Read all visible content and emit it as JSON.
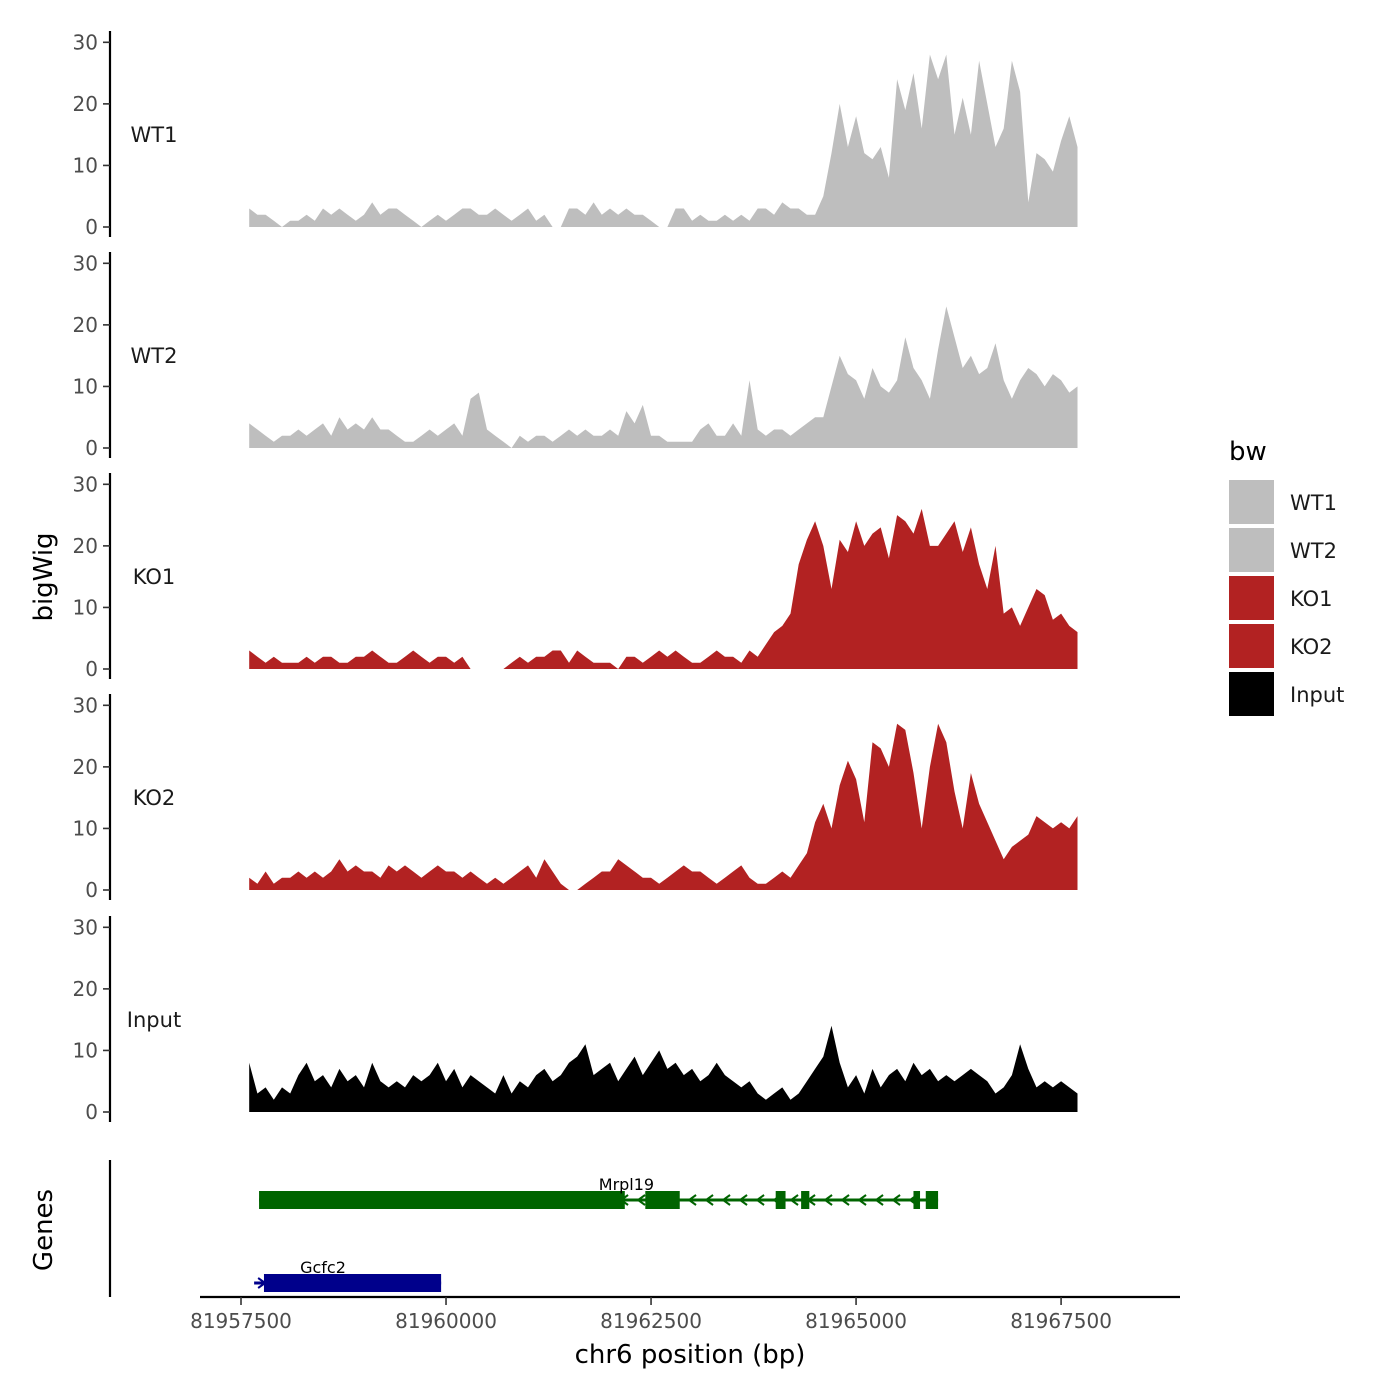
{
  "chart_data": {
    "type": "area",
    "title": "",
    "xlabel": "chr6 position (bp)",
    "ylabel": "bigWig",
    "genes_label": "Genes",
    "xlim": [
      81957000,
      81968950
    ],
    "ylim": [
      0,
      32
    ],
    "x_ticks": [
      81957500,
      81960000,
      81962500,
      81965000,
      81967500
    ],
    "x_tick_labels": [
      "81957500",
      "81960000",
      "81962500",
      "81965000",
      "81967500"
    ],
    "y_ticks": [
      0,
      10,
      20,
      30
    ],
    "y_tick_labels": [
      "0",
      "10",
      "20",
      "30"
    ],
    "legend": {
      "title": "bw",
      "placement": "right",
      "entries": [
        {
          "label": "WT1",
          "color": "#bebebe"
        },
        {
          "label": "WT2",
          "color": "#bebebe"
        },
        {
          "label": "KO1",
          "color": "#b22222"
        },
        {
          "label": "KO2",
          "color": "#b22222"
        },
        {
          "label": "Input",
          "color": "#000000"
        }
      ]
    },
    "series": [
      {
        "name": "WT1",
        "color": "#bebebe",
        "x": [
          81957600,
          81957700,
          81957800,
          81957900,
          81958000,
          81958100,
          81958200,
          81958300,
          81958400,
          81958500,
          81958600,
          81958700,
          81958800,
          81958900,
          81959000,
          81959100,
          81959200,
          81959300,
          81959400,
          81959500,
          81959600,
          81959700,
          81959800,
          81959900,
          81960000,
          81960100,
          81960200,
          81960300,
          81960400,
          81960500,
          81960600,
          81960700,
          81960800,
          81960900,
          81961000,
          81961100,
          81961200,
          81961300,
          81961400,
          81961500,
          81961600,
          81961700,
          81961800,
          81961900,
          81962000,
          81962100,
          81962200,
          81962300,
          81962400,
          81962500,
          81962600,
          81962700,
          81962800,
          81962900,
          81963000,
          81963100,
          81963200,
          81963300,
          81963400,
          81963500,
          81963600,
          81963700,
          81963800,
          81963900,
          81964000,
          81964100,
          81964200,
          81964300,
          81964400,
          81964500,
          81964600,
          81964700,
          81964800,
          81964900,
          81965000,
          81965100,
          81965200,
          81965300,
          81965400,
          81965500,
          81965600,
          81965700,
          81965800,
          81965900,
          81966000,
          81966100,
          81966200,
          81966300,
          81966400,
          81966500,
          81966600,
          81966700,
          81966800,
          81966900,
          81967000,
          81967100,
          81967200,
          81967300,
          81967400,
          81967500,
          81967600,
          81967700
        ],
        "values": [
          3,
          2,
          2,
          1,
          0,
          1,
          1,
          2,
          1,
          3,
          2,
          3,
          2,
          1,
          2,
          4,
          2,
          3,
          3,
          2,
          1,
          0,
          1,
          2,
          1,
          2,
          3,
          3,
          2,
          2,
          3,
          2,
          1,
          2,
          3,
          1,
          2,
          0,
          0,
          3,
          3,
          2,
          4,
          2,
          3,
          2,
          3,
          2,
          2,
          1,
          0,
          0,
          3,
          3,
          1,
          2,
          1,
          1,
          2,
          1,
          2,
          1,
          3,
          3,
          2,
          4,
          3,
          3,
          2,
          2,
          5,
          12,
          20,
          13,
          18,
          12,
          11,
          13,
          8,
          24,
          19,
          25,
          16,
          28,
          24,
          28,
          15,
          21,
          15,
          27,
          20,
          13,
          16,
          27,
          22,
          4,
          12,
          11,
          9,
          14,
          18,
          13
        ]
      },
      {
        "name": "WT2",
        "color": "#bebebe",
        "x": [
          81957600,
          81957700,
          81957800,
          81957900,
          81958000,
          81958100,
          81958200,
          81958300,
          81958400,
          81958500,
          81958600,
          81958700,
          81958800,
          81958900,
          81959000,
          81959100,
          81959200,
          81959300,
          81959400,
          81959500,
          81959600,
          81959700,
          81959800,
          81959900,
          81960000,
          81960100,
          81960200,
          81960300,
          81960400,
          81960500,
          81960600,
          81960700,
          81960800,
          81960900,
          81961000,
          81961100,
          81961200,
          81961300,
          81961400,
          81961500,
          81961600,
          81961700,
          81961800,
          81961900,
          81962000,
          81962100,
          81962200,
          81962300,
          81962400,
          81962500,
          81962600,
          81962700,
          81962800,
          81962900,
          81963000,
          81963100,
          81963200,
          81963300,
          81963400,
          81963500,
          81963600,
          81963700,
          81963800,
          81963900,
          81964000,
          81964100,
          81964200,
          81964300,
          81964400,
          81964500,
          81964600,
          81964700,
          81964800,
          81964900,
          81965000,
          81965100,
          81965200,
          81965300,
          81965400,
          81965500,
          81965600,
          81965700,
          81965800,
          81965900,
          81966000,
          81966100,
          81966200,
          81966300,
          81966400,
          81966500,
          81966600,
          81966700,
          81966800,
          81966900,
          81967000,
          81967100,
          81967200,
          81967300,
          81967400,
          81967500,
          81967600,
          81967700
        ],
        "values": [
          4,
          3,
          2,
          1,
          2,
          2,
          3,
          2,
          3,
          4,
          2,
          5,
          3,
          4,
          3,
          5,
          3,
          3,
          2,
          1,
          1,
          2,
          3,
          2,
          3,
          4,
          2,
          8,
          9,
          3,
          2,
          1,
          0,
          2,
          1,
          2,
          2,
          1,
          2,
          3,
          2,
          3,
          2,
          2,
          3,
          2,
          6,
          4,
          7,
          2,
          2,
          1,
          1,
          1,
          1,
          3,
          4,
          2,
          2,
          4,
          2,
          11,
          3,
          2,
          3,
          3,
          2,
          3,
          4,
          5,
          5,
          10,
          15,
          12,
          11,
          8,
          13,
          10,
          9,
          11,
          18,
          13,
          11,
          8,
          16,
          23,
          18,
          13,
          15,
          12,
          13,
          17,
          11,
          8,
          11,
          13,
          12,
          10,
          12,
          11,
          9,
          10
        ]
      },
      {
        "name": "KO1",
        "color": "#b22222",
        "x": [
          81957600,
          81957700,
          81957800,
          81957900,
          81958000,
          81958100,
          81958200,
          81958300,
          81958400,
          81958500,
          81958600,
          81958700,
          81958800,
          81958900,
          81959000,
          81959100,
          81959200,
          81959300,
          81959400,
          81959500,
          81959600,
          81959700,
          81959800,
          81959900,
          81960000,
          81960100,
          81960200,
          81960300,
          81960400,
          81960500,
          81960600,
          81960700,
          81960800,
          81960900,
          81961000,
          81961100,
          81961200,
          81961300,
          81961400,
          81961500,
          81961600,
          81961700,
          81961800,
          81961900,
          81962000,
          81962100,
          81962200,
          81962300,
          81962400,
          81962500,
          81962600,
          81962700,
          81962800,
          81962900,
          81963000,
          81963100,
          81963200,
          81963300,
          81963400,
          81963500,
          81963600,
          81963700,
          81963800,
          81963900,
          81964000,
          81964100,
          81964200,
          81964300,
          81964400,
          81964500,
          81964600,
          81964700,
          81964800,
          81964900,
          81965000,
          81965100,
          81965200,
          81965300,
          81965400,
          81965500,
          81965600,
          81965700,
          81965800,
          81965900,
          81966000,
          81966100,
          81966200,
          81966300,
          81966400,
          81966500,
          81966600,
          81966700,
          81966800,
          81966900,
          81967000,
          81967100,
          81967200,
          81967300,
          81967400,
          81967500,
          81967600,
          81967700
        ],
        "values": [
          3,
          2,
          1,
          2,
          1,
          1,
          1,
          2,
          1,
          2,
          2,
          1,
          1,
          2,
          2,
          3,
          2,
          1,
          1,
          2,
          3,
          2,
          1,
          2,
          2,
          1,
          2,
          0,
          0,
          0,
          0,
          0,
          1,
          2,
          1,
          2,
          2,
          3,
          3,
          1,
          3,
          2,
          1,
          1,
          1,
          0,
          2,
          2,
          1,
          2,
          3,
          2,
          3,
          2,
          1,
          1,
          2,
          3,
          2,
          2,
          1,
          3,
          2,
          4,
          6,
          7,
          9,
          17,
          21,
          24,
          20,
          13,
          21,
          19,
          24,
          20,
          22,
          23,
          18,
          25,
          24,
          22,
          26,
          20,
          20,
          22,
          24,
          19,
          23,
          17,
          13,
          20,
          9,
          10,
          7,
          10,
          13,
          12,
          8,
          9,
          7,
          6
        ]
      },
      {
        "name": "KO2",
        "color": "#b22222",
        "x": [
          81957600,
          81957700,
          81957800,
          81957900,
          81958000,
          81958100,
          81958200,
          81958300,
          81958400,
          81958500,
          81958600,
          81958700,
          81958800,
          81958900,
          81959000,
          81959100,
          81959200,
          81959300,
          81959400,
          81959500,
          81959600,
          81959700,
          81959800,
          81959900,
          81960000,
          81960100,
          81960200,
          81960300,
          81960400,
          81960500,
          81960600,
          81960700,
          81960800,
          81960900,
          81961000,
          81961100,
          81961200,
          81961300,
          81961400,
          81961500,
          81961600,
          81961700,
          81961800,
          81961900,
          81962000,
          81962100,
          81962200,
          81962300,
          81962400,
          81962500,
          81962600,
          81962700,
          81962800,
          81962900,
          81963000,
          81963100,
          81963200,
          81963300,
          81963400,
          81963500,
          81963600,
          81963700,
          81963800,
          81963900,
          81964000,
          81964100,
          81964200,
          81964300,
          81964400,
          81964500,
          81964600,
          81964700,
          81964800,
          81964900,
          81965000,
          81965100,
          81965200,
          81965300,
          81965400,
          81965500,
          81965600,
          81965700,
          81965800,
          81965900,
          81966000,
          81966100,
          81966200,
          81966300,
          81966400,
          81966500,
          81966600,
          81966700,
          81966800,
          81966900,
          81967000,
          81967100,
          81967200,
          81967300,
          81967400,
          81967500,
          81967600,
          81967700
        ],
        "values": [
          2,
          1,
          3,
          1,
          2,
          2,
          3,
          2,
          3,
          2,
          3,
          5,
          3,
          4,
          3,
          3,
          2,
          4,
          3,
          4,
          3,
          2,
          3,
          4,
          3,
          3,
          2,
          3,
          2,
          1,
          2,
          1,
          2,
          3,
          4,
          2,
          5,
          3,
          1,
          0,
          0,
          1,
          2,
          3,
          3,
          5,
          4,
          3,
          2,
          2,
          1,
          2,
          3,
          4,
          3,
          3,
          2,
          1,
          2,
          3,
          4,
          2,
          1,
          1,
          2,
          3,
          2,
          4,
          6,
          11,
          14,
          10,
          17,
          21,
          18,
          11,
          24,
          23,
          20,
          27,
          26,
          19,
          10,
          20,
          27,
          24,
          16,
          10,
          19,
          14,
          11,
          8,
          5,
          7,
          8,
          9,
          12,
          11,
          10,
          11,
          10,
          12
        ]
      },
      {
        "name": "Input",
        "color": "#000000",
        "x": [
          81957600,
          81957700,
          81957800,
          81957900,
          81958000,
          81958100,
          81958200,
          81958300,
          81958400,
          81958500,
          81958600,
          81958700,
          81958800,
          81958900,
          81959000,
          81959100,
          81959200,
          81959300,
          81959400,
          81959500,
          81959600,
          81959700,
          81959800,
          81959900,
          81960000,
          81960100,
          81960200,
          81960300,
          81960400,
          81960500,
          81960600,
          81960700,
          81960800,
          81960900,
          81961000,
          81961100,
          81961200,
          81961300,
          81961400,
          81961500,
          81961600,
          81961700,
          81961800,
          81961900,
          81962000,
          81962100,
          81962200,
          81962300,
          81962400,
          81962500,
          81962600,
          81962700,
          81962800,
          81962900,
          81963000,
          81963100,
          81963200,
          81963300,
          81963400,
          81963500,
          81963600,
          81963700,
          81963800,
          81963900,
          81964000,
          81964100,
          81964200,
          81964300,
          81964400,
          81964500,
          81964600,
          81964700,
          81964800,
          81964900,
          81965000,
          81965100,
          81965200,
          81965300,
          81965400,
          81965500,
          81965600,
          81965700,
          81965800,
          81965900,
          81966000,
          81966100,
          81966200,
          81966300,
          81966400,
          81966500,
          81966600,
          81966700,
          81966800,
          81966900,
          81967000,
          81967100,
          81967200,
          81967300,
          81967400,
          81967500,
          81967600,
          81967700
        ],
        "values": [
          8,
          3,
          4,
          2,
          4,
          3,
          6,
          8,
          5,
          6,
          4,
          7,
          5,
          6,
          4,
          8,
          5,
          4,
          5,
          4,
          6,
          5,
          6,
          8,
          5,
          7,
          4,
          6,
          5,
          4,
          3,
          6,
          3,
          5,
          4,
          6,
          7,
          5,
          6,
          8,
          9,
          11,
          6,
          7,
          8,
          5,
          7,
          9,
          6,
          8,
          10,
          7,
          8,
          6,
          7,
          5,
          6,
          8,
          6,
          5,
          4,
          5,
          3,
          2,
          3,
          4,
          2,
          3,
          5,
          7,
          9,
          14,
          8,
          4,
          6,
          3,
          7,
          4,
          6,
          7,
          5,
          8,
          6,
          7,
          5,
          6,
          5,
          6,
          7,
          6,
          5,
          3,
          4,
          6,
          11,
          7,
          4,
          5,
          4,
          5,
          4,
          3
        ]
      }
    ],
    "genes": [
      {
        "name": "Mrpl19",
        "start": 81957720,
        "end": 81966000,
        "strand": "-",
        "color": "#006400",
        "row": 1,
        "blocks": [
          [
            81957720,
            81962180
          ],
          [
            81962430,
            81962850
          ],
          [
            81964020,
            81964140
          ],
          [
            81964330,
            81964430
          ],
          [
            81965700,
            81965780
          ],
          [
            81965850,
            81966000
          ]
        ]
      },
      {
        "name": "Gcfc2",
        "start": 81957660,
        "end": 81959940,
        "strand": "+",
        "color": "#00008b",
        "row": 2,
        "blocks": [
          [
            81957780,
            81959940
          ]
        ]
      }
    ]
  }
}
